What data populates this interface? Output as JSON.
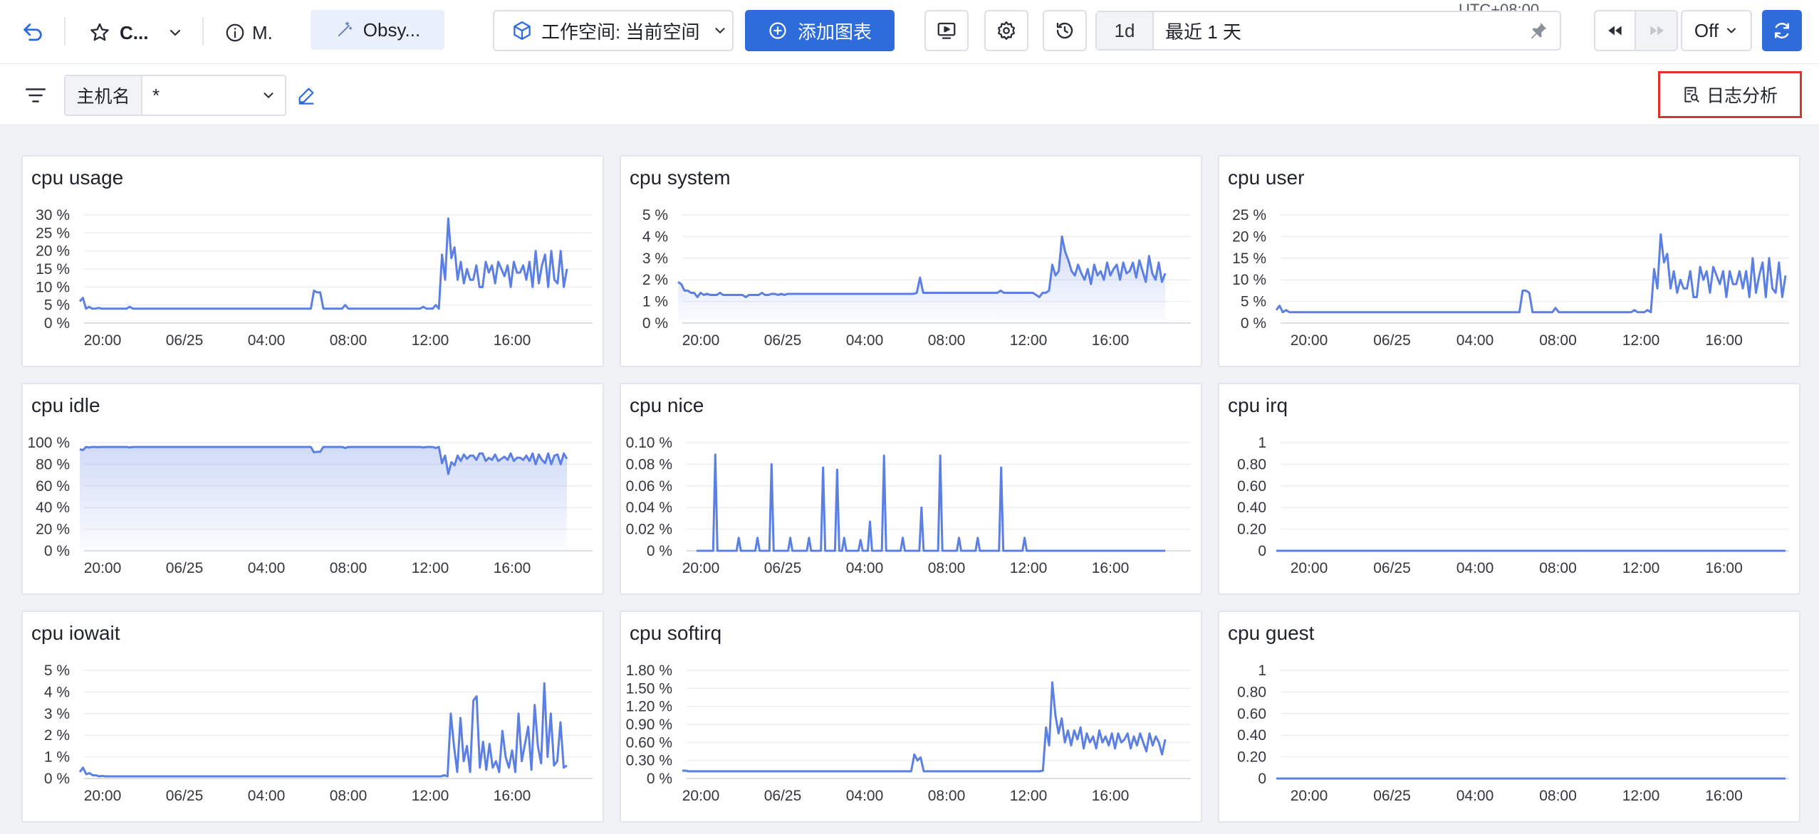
{
  "toolbar": {
    "dashboard_short": "C...",
    "info_short": "M.",
    "tab_label": "Obsy...",
    "workspace_label": "工作空间: 当前空间",
    "add_chart_label": "添加图表",
    "utc_label": "UTC+08:00",
    "time_quick": "1d",
    "time_range": "最近 1 天",
    "refresh_mode": "Off"
  },
  "filter": {
    "label": "主机名",
    "value": "*",
    "log_analysis_label": "日志分析"
  },
  "colors": {
    "line": "#5b7fe3",
    "primary": "#2e6bdb",
    "highlight_border": "#e0322b"
  },
  "panels": [
    {
      "title": "cpu usage",
      "x_labels": [
        "20:00",
        "06/25",
        "04:00",
        "08:00",
        "12:00",
        "16:00"
      ],
      "y_labels": [
        "30 %",
        "25 %",
        "20 %",
        "15 %",
        "10 %",
        "5 %",
        "0 %"
      ],
      "y_max": 30,
      "fill": false,
      "chart_data": {
        "type": "line",
        "x_start": "06/24 17:30",
        "x_end": "06/25 18:00",
        "values": [
          6,
          7,
          4,
          4.5,
          4,
          4,
          4.2,
          4,
          4,
          4,
          4,
          4,
          4,
          4,
          4,
          4,
          4.5,
          4,
          4,
          4,
          4,
          4,
          4,
          4,
          4,
          4,
          4,
          4,
          4,
          4,
          4,
          4,
          4,
          4,
          4,
          4,
          4,
          4,
          4,
          4,
          4,
          4,
          4,
          4,
          4,
          4,
          4,
          4,
          4,
          4,
          4,
          4,
          4,
          4,
          4,
          4,
          4,
          4,
          4,
          4,
          4,
          4,
          4,
          4,
          4,
          4,
          4,
          4,
          4,
          4,
          4,
          4,
          4,
          4,
          4,
          9,
          8.5,
          8.5,
          4,
          4,
          4,
          4,
          4,
          4,
          4,
          5,
          4,
          4,
          4,
          4,
          4,
          4,
          4,
          4,
          4,
          4,
          4,
          4,
          4,
          4,
          4,
          4,
          4,
          4,
          4,
          4,
          4,
          4,
          4,
          4,
          4.5,
          4,
          4,
          4,
          5,
          4,
          19,
          12,
          29,
          18,
          21,
          12,
          17,
          11,
          15,
          12,
          12,
          16,
          10,
          10,
          17,
          14,
          16,
          11,
          17,
          15,
          13,
          16,
          10,
          17,
          14,
          14,
          16,
          12,
          17,
          10,
          20,
          11,
          16,
          19,
          10,
          20,
          12,
          11,
          20,
          10,
          15
        ]
      }
    },
    {
      "title": "cpu system",
      "x_labels": [
        "20:00",
        "06/25",
        "04:00",
        "08:00",
        "12:00",
        "16:00"
      ],
      "y_labels": [
        "5 %",
        "4 %",
        "3 %",
        "2 %",
        "1 %",
        "0 %"
      ],
      "y_max": 5,
      "fill": true,
      "chart_data": {
        "type": "area",
        "x_start": "06/24 17:30",
        "x_end": "06/25 18:00",
        "values": [
          1.9,
          1.8,
          1.5,
          1.5,
          1.4,
          1.4,
          1.2,
          1.4,
          1.3,
          1.35,
          1.3,
          1.3,
          1.3,
          1.4,
          1.3,
          1.3,
          1.3,
          1.3,
          1.3,
          1.3,
          1.3,
          1.2,
          1.3,
          1.3,
          1.3,
          1.3,
          1.4,
          1.3,
          1.3,
          1.35,
          1.35,
          1.3,
          1.35,
          1.3,
          1.35,
          1.35,
          1.35,
          1.35,
          1.35,
          1.35,
          1.35,
          1.35,
          1.35,
          1.35,
          1.35,
          1.35,
          1.35,
          1.35,
          1.35,
          1.35,
          1.35,
          1.35,
          1.35,
          1.35,
          1.35,
          1.35,
          1.35,
          1.35,
          1.35,
          1.35,
          1.35,
          1.35,
          1.35,
          1.35,
          1.35,
          1.35,
          1.35,
          1.35,
          1.35,
          1.35,
          1.35,
          1.35,
          1.35,
          1.35,
          1.4,
          2.1,
          1.4,
          1.4,
          1.4,
          1.4,
          1.4,
          1.4,
          1.4,
          1.4,
          1.4,
          1.4,
          1.4,
          1.4,
          1.4,
          1.4,
          1.4,
          1.4,
          1.4,
          1.4,
          1.4,
          1.4,
          1.4,
          1.4,
          1.4,
          1.4,
          1.5,
          1.4,
          1.4,
          1.4,
          1.4,
          1.4,
          1.4,
          1.4,
          1.4,
          1.4,
          1.4,
          1.3,
          1.2,
          1.4,
          1.4,
          1.5,
          2.7,
          2.2,
          2.4,
          4,
          3.3,
          2.9,
          2.4,
          2.2,
          2.7,
          2.3,
          2.0,
          2.5,
          1.8,
          2.7,
          2.2,
          2.4,
          2.0,
          2.8,
          2.2,
          2.5,
          2.7,
          2.0,
          2.8,
          2.3,
          2.4,
          2.8,
          2.1,
          2.9,
          2.4,
          1.9,
          3.1,
          2.3,
          2.0,
          2.8,
          1.9,
          2.3
        ]
      }
    },
    {
      "title": "cpu user",
      "x_labels": [
        "20:00",
        "06/25",
        "04:00",
        "08:00",
        "12:00",
        "16:00"
      ],
      "y_labels": [
        "25 %",
        "20 %",
        "15 %",
        "10 %",
        "5 %",
        "0 %"
      ],
      "y_max": 25,
      "fill": false,
      "chart_data": {
        "type": "line",
        "x_start": "06/24 17:30",
        "x_end": "06/25 18:00",
        "values": [
          3,
          4,
          2.5,
          3,
          2.5,
          2.5,
          2.5,
          2.5,
          2.5,
          2.5,
          2.5,
          2.5,
          2.5,
          2.5,
          2.5,
          2.5,
          2.5,
          2.5,
          2.5,
          2.5,
          2.5,
          2.5,
          2.5,
          2.5,
          2.5,
          2.5,
          2.5,
          2.5,
          2.5,
          2.5,
          2.5,
          2.5,
          2.5,
          2.5,
          2.5,
          2.5,
          2.5,
          2.5,
          2.5,
          2.5,
          2.5,
          2.5,
          2.5,
          2.5,
          2.5,
          2.5,
          2.5,
          2.5,
          2.5,
          2.5,
          2.5,
          2.5,
          2.5,
          2.5,
          2.5,
          2.5,
          2.5,
          2.5,
          2.5,
          2.5,
          2.5,
          2.5,
          2.5,
          2.5,
          2.5,
          2.5,
          2.5,
          2.5,
          2.5,
          2.5,
          2.5,
          2.5,
          2.5,
          2.5,
          2.5,
          7.5,
          7.5,
          7,
          2.5,
          2.5,
          2.5,
          2.5,
          2.5,
          2.5,
          2.5,
          3.5,
          2.5,
          2.5,
          2.5,
          2.5,
          2.5,
          2.5,
          2.5,
          2.5,
          2.5,
          2.5,
          2.5,
          2.5,
          2.5,
          2.5,
          2.5,
          2.5,
          2.5,
          2.5,
          2.5,
          2.5,
          2.5,
          2.5,
          2.5,
          3,
          2.5,
          2.5,
          2.5,
          3,
          2.5,
          12.5,
          8,
          20.5,
          14,
          16,
          8,
          12,
          7,
          10,
          8,
          8,
          12,
          6,
          6,
          13,
          10,
          12,
          7,
          13,
          11,
          9,
          12,
          6,
          12,
          9,
          9,
          12,
          8,
          12,
          6,
          15,
          7,
          11,
          14,
          6,
          15,
          8,
          7,
          14,
          6,
          11
        ]
      }
    },
    {
      "title": "cpu idle",
      "x_labels": [
        "20:00",
        "06/25",
        "04:00",
        "08:00",
        "12:00",
        "16:00"
      ],
      "y_labels": [
        "100 %",
        "80 %",
        "60 %",
        "40 %",
        "20 %",
        "0 %"
      ],
      "y_max": 100,
      "fill": true,
      "chart_data": {
        "type": "area",
        "x_start": "06/24 17:30",
        "x_end": "06/25 18:00",
        "values": [
          94,
          93,
          96,
          95.5,
          96,
          96,
          95.8,
          96,
          96,
          96,
          96,
          96,
          96,
          96,
          96,
          96,
          95.5,
          96,
          96,
          96,
          96,
          96,
          96,
          96,
          96,
          96,
          96,
          96,
          96,
          96,
          96,
          96,
          96,
          96,
          96,
          96,
          96,
          96,
          96,
          96,
          96,
          96,
          96,
          96,
          96,
          96,
          96,
          96,
          96,
          96,
          96,
          96,
          96,
          96,
          96,
          96,
          96,
          96,
          96,
          96,
          96,
          96,
          96,
          96,
          96,
          96,
          96,
          96,
          96,
          96,
          96,
          96,
          96,
          96,
          96,
          91,
          91.5,
          91.5,
          96,
          96,
          96,
          96,
          96,
          96,
          96,
          95,
          96,
          96,
          96,
          96,
          96,
          96,
          96,
          96,
          96,
          96,
          96,
          96,
          96,
          96,
          96,
          96,
          96,
          96,
          96,
          96,
          96,
          96,
          96,
          96,
          95.5,
          96,
          96,
          96,
          95,
          96,
          81,
          88,
          71,
          82,
          79,
          88,
          83,
          89,
          85,
          88,
          88,
          84,
          90,
          90,
          83,
          86,
          84,
          89,
          83,
          85,
          87,
          84,
          90,
          83,
          86,
          86,
          84,
          88,
          83,
          90,
          80,
          89,
          84,
          81,
          90,
          80,
          88,
          89,
          80,
          90,
          85
        ]
      }
    },
    {
      "title": "cpu nice",
      "x_labels": [
        "20:00",
        "06/25",
        "04:00",
        "08:00",
        "12:00",
        "16:00"
      ],
      "y_labels": [
        "0.10 %",
        "0.08 %",
        "0.06 %",
        "0.04 %",
        "0.02 %",
        "0 %"
      ],
      "y_max": 0.1,
      "fill": false,
      "chart_data": {
        "type": "line",
        "x_start": "06/24 17:30",
        "x_end": "06/25 18:00",
        "spikes": [
          [
            0.04,
            0.089
          ],
          [
            0.09,
            0.012
          ],
          [
            0.13,
            0.012
          ],
          [
            0.16,
            0.08
          ],
          [
            0.2,
            0.012
          ],
          [
            0.24,
            0.012
          ],
          [
            0.27,
            0.077
          ],
          [
            0.3,
            0.075
          ],
          [
            0.315,
            0.012
          ],
          [
            0.35,
            0.01
          ],
          [
            0.37,
            0.027
          ],
          [
            0.4,
            0.088
          ],
          [
            0.44,
            0.012
          ],
          [
            0.48,
            0.04
          ],
          [
            0.52,
            0.088
          ],
          [
            0.56,
            0.012
          ],
          [
            0.6,
            0.012
          ],
          [
            0.65,
            0.077
          ],
          [
            0.7,
            0.012
          ]
        ]
      }
    },
    {
      "title": "cpu irq",
      "x_labels": [
        "20:00",
        "06/25",
        "04:00",
        "08:00",
        "12:00",
        "16:00"
      ],
      "y_labels": [
        "1",
        "0.80",
        "0.60",
        "0.40",
        "0.20",
        "0"
      ],
      "y_max": 1,
      "fill": false,
      "chart_data": {
        "type": "line",
        "x_start": "06/24 17:30",
        "x_end": "06/25 18:00",
        "values": [
          0,
          0
        ]
      }
    },
    {
      "title": "cpu iowait",
      "x_labels": [
        "20:00",
        "06/25",
        "04:00",
        "08:00",
        "12:00",
        "16:00"
      ],
      "y_labels": [
        "5 %",
        "4 %",
        "3 %",
        "2 %",
        "1 %",
        "0 %"
      ],
      "y_max": 5,
      "fill": false,
      "chart_data": {
        "type": "line",
        "x_start": "06/24 17:30",
        "x_end": "06/25 18:00",
        "values": [
          0.3,
          0.5,
          0.2,
          0.25,
          0.15,
          0.15,
          0.1,
          0.12,
          0.1,
          0.1,
          0.1,
          0.1,
          0.1,
          0.1,
          0.1,
          0.1,
          0.1,
          0.1,
          0.1,
          0.1,
          0.1,
          0.1,
          0.1,
          0.1,
          0.1,
          0.1,
          0.1,
          0.1,
          0.1,
          0.1,
          0.1,
          0.1,
          0.1,
          0.1,
          0.1,
          0.1,
          0.1,
          0.1,
          0.1,
          0.1,
          0.1,
          0.1,
          0.1,
          0.1,
          0.1,
          0.1,
          0.1,
          0.1,
          0.1,
          0.1,
          0.1,
          0.1,
          0.1,
          0.1,
          0.1,
          0.1,
          0.1,
          0.1,
          0.1,
          0.1,
          0.1,
          0.1,
          0.1,
          0.1,
          0.1,
          0.1,
          0.1,
          0.1,
          0.1,
          0.1,
          0.1,
          0.1,
          0.1,
          0.1,
          0.1,
          0.1,
          0.1,
          0.1,
          0.1,
          0.1,
          0.1,
          0.1,
          0.1,
          0.1,
          0.1,
          0.1,
          0.1,
          0.1,
          0.1,
          0.1,
          0.1,
          0.1,
          0.1,
          0.1,
          0.1,
          0.1,
          0.1,
          0.1,
          0.1,
          0.1,
          0.1,
          0.1,
          0.1,
          0.1,
          0.1,
          0.1,
          0.1,
          0.1,
          0.1,
          0.1,
          0.1,
          0.1,
          0.1,
          0.15,
          0.1,
          3,
          1.5,
          0.3,
          2.8,
          0.8,
          1.5,
          0.3,
          3.6,
          3.8,
          0.5,
          1.7,
          0.4,
          1.6,
          0.5,
          0.8,
          0.3,
          2.2,
          1.0,
          0.5,
          1.3,
          0.3,
          3.0,
          0.8,
          1.6,
          2.4,
          0.4,
          3.4,
          1.5,
          0.7,
          4.4,
          1.0,
          3.0,
          0.6,
          0.8,
          2.6,
          0.5,
          0.6
        ]
      }
    },
    {
      "title": "cpu softirq",
      "x_labels": [
        "20:00",
        "06/25",
        "04:00",
        "08:00",
        "12:00",
        "16:00"
      ],
      "y_labels": [
        "1.80 %",
        "1.50 %",
        "1.20 %",
        "0.90 %",
        "0.60 %",
        "0.30 %",
        "0 %"
      ],
      "y_max": 1.8,
      "fill": false,
      "chart_data": {
        "type": "line",
        "x_start": "06/24 17:30",
        "x_end": "06/25 18:00",
        "values": [
          0.13,
          0.13,
          0.12,
          0.12,
          0.12,
          0.12,
          0.12,
          0.12,
          0.12,
          0.12,
          0.12,
          0.12,
          0.12,
          0.12,
          0.12,
          0.12,
          0.12,
          0.12,
          0.12,
          0.12,
          0.12,
          0.12,
          0.12,
          0.12,
          0.12,
          0.12,
          0.12,
          0.12,
          0.12,
          0.12,
          0.12,
          0.12,
          0.12,
          0.12,
          0.12,
          0.12,
          0.12,
          0.12,
          0.12,
          0.12,
          0.12,
          0.12,
          0.12,
          0.12,
          0.12,
          0.12,
          0.12,
          0.12,
          0.12,
          0.12,
          0.12,
          0.12,
          0.12,
          0.12,
          0.12,
          0.12,
          0.12,
          0.12,
          0.12,
          0.12,
          0.12,
          0.12,
          0.12,
          0.12,
          0.12,
          0.12,
          0.12,
          0.12,
          0.12,
          0.12,
          0.12,
          0.12,
          0.12,
          0.12,
          0.4,
          0.3,
          0.35,
          0.12,
          0.12,
          0.12,
          0.12,
          0.12,
          0.12,
          0.12,
          0.12,
          0.12,
          0.12,
          0.12,
          0.12,
          0.12,
          0.12,
          0.12,
          0.12,
          0.12,
          0.12,
          0.12,
          0.12,
          0.12,
          0.12,
          0.12,
          0.12,
          0.12,
          0.12,
          0.12,
          0.12,
          0.12,
          0.12,
          0.12,
          0.12,
          0.12,
          0.12,
          0.12,
          0.12,
          0.12,
          0.12,
          0.13,
          0.85,
          0.55,
          1.6,
          1.05,
          0.75,
          1.0,
          0.6,
          0.8,
          0.55,
          0.8,
          0.65,
          0.85,
          0.5,
          0.75,
          0.6,
          0.7,
          0.5,
          0.8,
          0.6,
          0.7,
          0.55,
          0.75,
          0.5,
          0.75,
          0.6,
          0.65,
          0.75,
          0.5,
          0.7,
          0.55,
          0.75,
          0.6,
          0.45,
          0.75,
          0.55,
          0.7,
          0.6,
          0.4,
          0.65
        ]
      }
    },
    {
      "title": "cpu guest",
      "x_labels": [
        "20:00",
        "06/25",
        "04:00",
        "08:00",
        "12:00",
        "16:00"
      ],
      "y_labels": [
        "1",
        "0.80",
        "0.60",
        "0.40",
        "0.20",
        "0"
      ],
      "y_max": 1,
      "fill": false,
      "chart_data": {
        "type": "line",
        "x_start": "06/24 17:30",
        "x_end": "06/25 18:00",
        "values": [
          0,
          0
        ]
      }
    }
  ]
}
